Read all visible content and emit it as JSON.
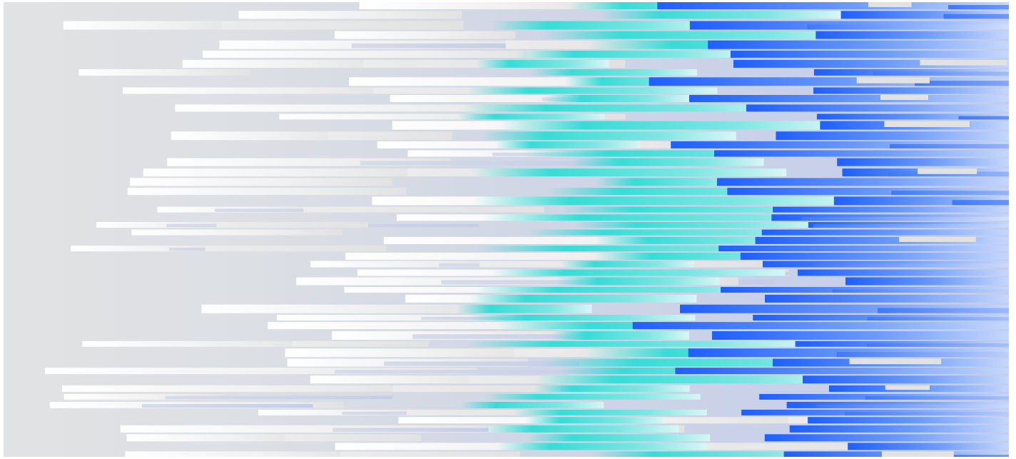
{
  "graphic": {
    "kind": "abstract horizontal gradient bars",
    "colors": {
      "background_left": "#e1e2e3",
      "background_right": "#c3ccec",
      "white_bar": "#ffffff",
      "light_grey_bar": "#e2e2e2",
      "lavender_bar": "#c4cce8",
      "cyan_bar": "#38dcd6",
      "blue_bar_deep": "#1f5ffb",
      "blue_bar_light": "#c5d7fc"
    }
  }
}
